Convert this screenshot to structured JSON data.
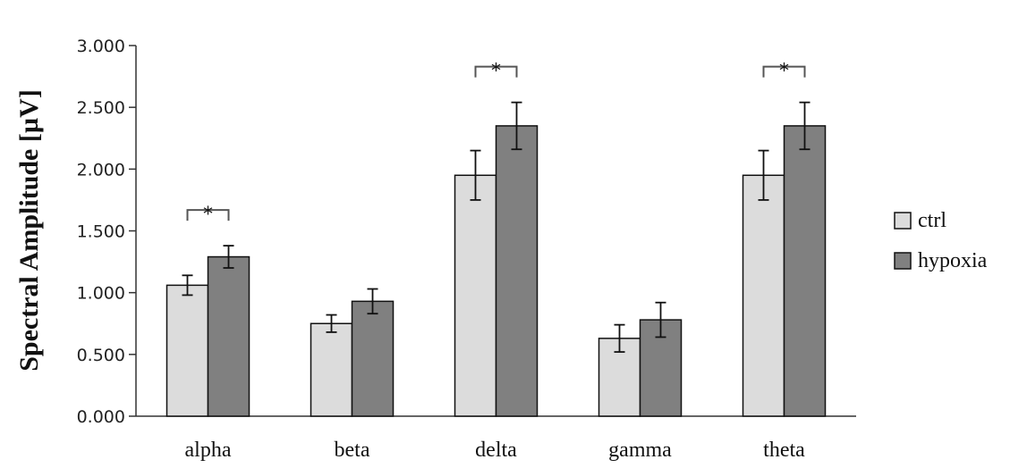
{
  "chart_data": {
    "type": "bar",
    "ylabel": "Spectral Amplitude [µV]",
    "xlabel": "",
    "ylim": [
      0,
      3
    ],
    "yticks": [
      0,
      0.5,
      1,
      1.5,
      2,
      2.5,
      3
    ],
    "ytick_labels": [
      "0.000",
      "0.500",
      "1.000",
      "1.500",
      "2.000",
      "2.500",
      "3.000"
    ],
    "categories": [
      "alpha",
      "beta",
      "delta",
      "gamma",
      "theta"
    ],
    "series": [
      {
        "name": "ctrl",
        "color": "#dcdcdc",
        "values": [
          1.06,
          0.75,
          1.95,
          0.63,
          1.95
        ],
        "errors": [
          0.08,
          0.07,
          0.2,
          0.11,
          0.2
        ]
      },
      {
        "name": "hypoxia",
        "color": "#808080",
        "values": [
          1.29,
          0.93,
          2.35,
          0.78,
          2.35
        ],
        "errors": [
          0.09,
          0.1,
          0.19,
          0.14,
          0.19
        ]
      }
    ],
    "significance": [
      {
        "category": "alpha",
        "label": "*"
      },
      {
        "category": "delta",
        "label": "*"
      },
      {
        "category": "theta",
        "label": "*"
      }
    ],
    "legend_position": "right",
    "grid": false
  }
}
